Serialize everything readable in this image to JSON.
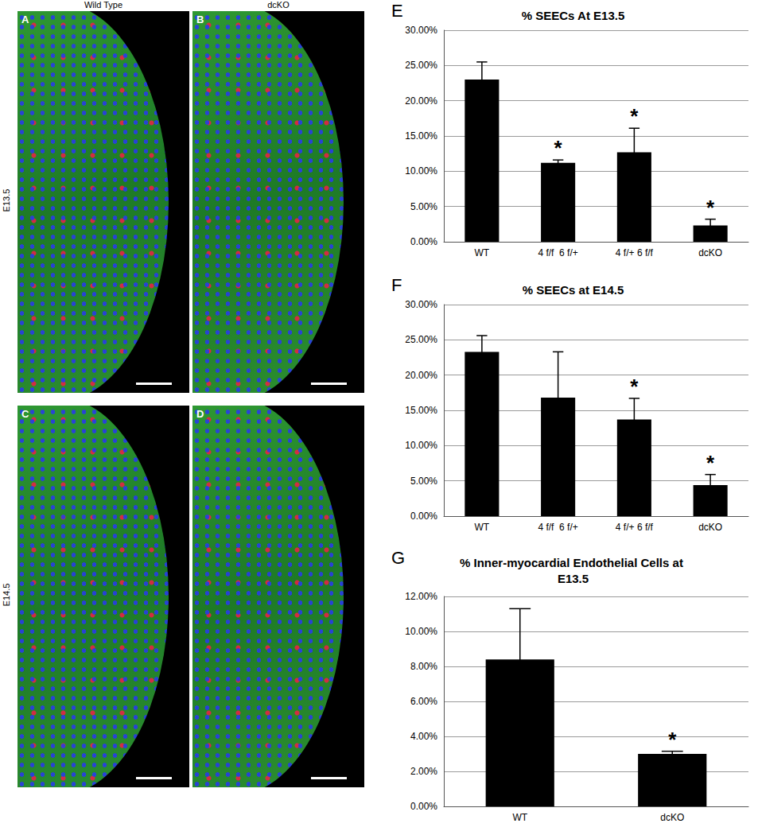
{
  "chart_data": [
    {
      "type": "bar",
      "title": "% SEECs At E13.5",
      "categories": [
        "WT",
        "4 f/f  6 f/+",
        "4 f/+ 6 f/f",
        "dcKO"
      ],
      "values": [
        23.0,
        11.2,
        12.7,
        2.3
      ],
      "errors": [
        2.5,
        0.4,
        3.4,
        0.9
      ],
      "annotations": [
        null,
        "*",
        "*",
        "*"
      ],
      "color": "#000000",
      "ylim": [
        0,
        30
      ],
      "yticks": [
        {
          "value": 0,
          "label": "0.00%"
        },
        {
          "value": 5,
          "label": "5.00%"
        },
        {
          "value": 10,
          "label": "10.00%"
        },
        {
          "value": 15,
          "label": "15.00%"
        },
        {
          "value": 20,
          "label": "20.00%"
        },
        {
          "value": 25,
          "label": "25.00%"
        },
        {
          "value": 30,
          "label": "30.00%"
        }
      ],
      "grid": true
    },
    {
      "type": "bar",
      "title": "% SEECs at E14.5",
      "categories": [
        "WT",
        "4 f/f  6 f/+",
        "4 f/+ 6 f/f",
        "dcKO"
      ],
      "values": [
        23.3,
        16.8,
        13.7,
        4.4
      ],
      "errors": [
        2.3,
        6.5,
        3.0,
        1.5
      ],
      "annotations": [
        null,
        null,
        "*",
        "*"
      ],
      "color": "#000000",
      "ylim": [
        0,
        30
      ],
      "yticks": [
        {
          "value": 0,
          "label": "0.00%"
        },
        {
          "value": 5,
          "label": "5.00%"
        },
        {
          "value": 10,
          "label": "10.00%"
        },
        {
          "value": 15,
          "label": "15.00%"
        },
        {
          "value": 20,
          "label": "20.00%"
        },
        {
          "value": 25,
          "label": "25.00%"
        },
        {
          "value": 30,
          "label": "30.00%"
        }
      ],
      "grid": true
    },
    {
      "type": "bar",
      "title": "% Inner-myocardial Endothelial Cells at E13.5",
      "categories": [
        "WT",
        "dcKO"
      ],
      "values": [
        8.4,
        3.0
      ],
      "errors": [
        2.9,
        0.15
      ],
      "annotations": [
        null,
        "*"
      ],
      "color": "#000000",
      "ylim": [
        0,
        12
      ],
      "yticks": [
        {
          "value": 0,
          "label": "0.00%"
        },
        {
          "value": 2,
          "label": "2.00%"
        },
        {
          "value": 4,
          "label": "4.00%"
        },
        {
          "value": 6,
          "label": "6.00%"
        },
        {
          "value": 8,
          "label": "8.00%"
        },
        {
          "value": 10,
          "label": "10.00%"
        },
        {
          "value": 12,
          "label": "12.00%"
        }
      ],
      "grid": true
    }
  ],
  "image_panels": {
    "columns": [
      "Wild Type",
      "dcKO"
    ],
    "rows": [
      "E13.5",
      "E14.5"
    ],
    "labels": [
      "A",
      "B",
      "C",
      "D"
    ],
    "chart_labels": [
      "E",
      "F",
      "G"
    ]
  }
}
